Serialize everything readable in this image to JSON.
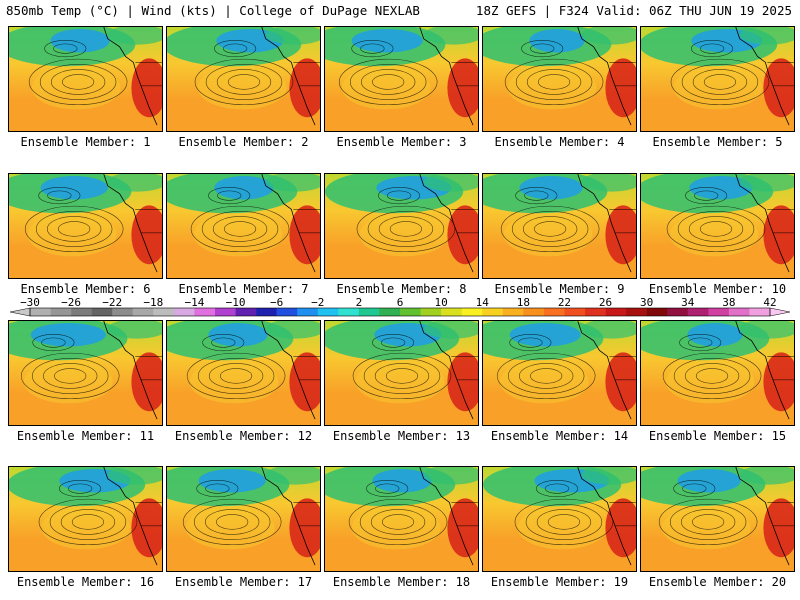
{
  "header": {
    "left": "850mb Temp (°C) | Wind (kts) | College of DuPage NEXLAB",
    "right": "18Z GEFS | F324 Valid: 06Z THU JUN 19 2025"
  },
  "panels": [
    {
      "member": 1,
      "label": "Ensemble Member: 1"
    },
    {
      "member": 2,
      "label": "Ensemble Member: 2"
    },
    {
      "member": 3,
      "label": "Ensemble Member: 3"
    },
    {
      "member": 4,
      "label": "Ensemble Member: 4"
    },
    {
      "member": 5,
      "label": "Ensemble Member: 5"
    },
    {
      "member": 6,
      "label": "Ensemble Member: 6"
    },
    {
      "member": 7,
      "label": "Ensemble Member: 7"
    },
    {
      "member": 8,
      "label": "Ensemble Member: 8"
    },
    {
      "member": 9,
      "label": "Ensemble Member: 9"
    },
    {
      "member": 10,
      "label": "Ensemble Member: 10"
    },
    {
      "member": 11,
      "label": "Ensemble Member: 11"
    },
    {
      "member": 12,
      "label": "Ensemble Member: 12"
    },
    {
      "member": 13,
      "label": "Ensemble Member: 13"
    },
    {
      "member": 14,
      "label": "Ensemble Member: 14"
    },
    {
      "member": 15,
      "label": "Ensemble Member: 15"
    },
    {
      "member": 16,
      "label": "Ensemble Member: 16"
    },
    {
      "member": 17,
      "label": "Ensemble Member: 17"
    },
    {
      "member": 18,
      "label": "Ensemble Member: 18"
    },
    {
      "member": 19,
      "label": "Ensemble Member: 19"
    },
    {
      "member": 20,
      "label": "Ensemble Member: 20"
    }
  ],
  "colorbar": {
    "tick_labels": [
      "−30",
      "−26",
      "−22",
      "−18",
      "−14",
      "−10",
      "−6",
      "−2",
      "2",
      "6",
      "10",
      "14",
      "18",
      "22",
      "26",
      "30",
      "34",
      "38",
      "42"
    ],
    "colors": [
      "#b0b0b0",
      "#969696",
      "#7c7c7c",
      "#646464",
      "#8c8c8c",
      "#a8a8a8",
      "#bcbcbc",
      "#d8a8e0",
      "#e070e0",
      "#b040d0",
      "#6020b0",
      "#2020b0",
      "#2050e0",
      "#2090f0",
      "#20c0f0",
      "#30e0d0",
      "#20c890",
      "#30b050",
      "#60c030",
      "#a0d020",
      "#d8e020",
      "#f8f020",
      "#f8d020",
      "#f8b020",
      "#f89020",
      "#f87020",
      "#f05020",
      "#e03020",
      "#c81818",
      "#a81010",
      "#800808",
      "#901040",
      "#b02070",
      "#d040a0",
      "#e070c8",
      "#f0a0e0"
    ]
  },
  "palette": {
    "cold": "#20a0e0",
    "cool": "#30c070",
    "mild": "#c0d830",
    "warm": "#f8c830",
    "hot": "#f8a028",
    "very_hot": "#d82818",
    "land_line": "#000000"
  }
}
